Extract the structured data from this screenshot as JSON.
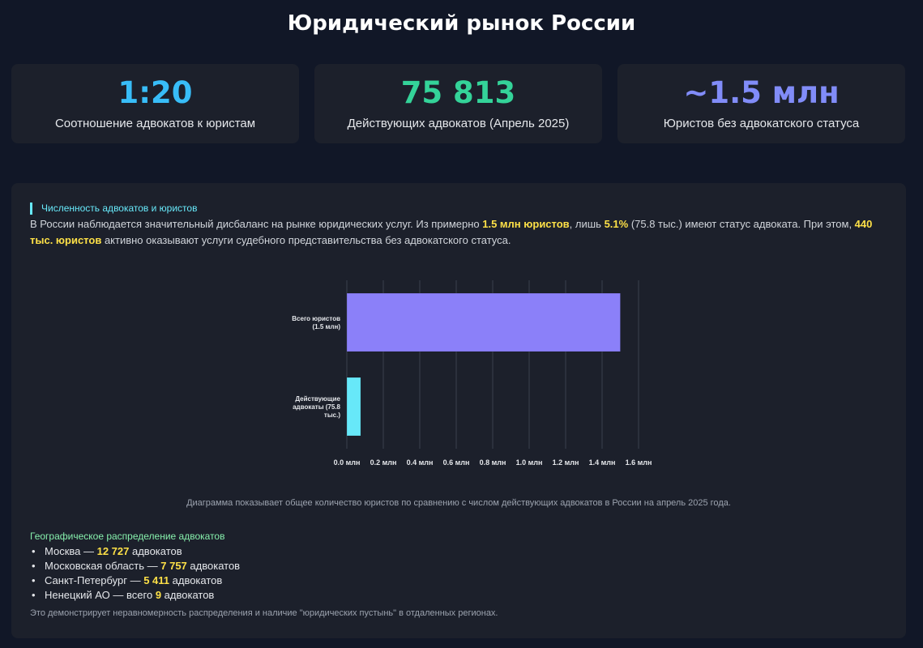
{
  "page": {
    "title": "Юридический рынок России"
  },
  "stats": [
    {
      "value": "1:20",
      "label": "Соотношение адвокатов к юристам",
      "color": "#38bdf8"
    },
    {
      "value": "75 813",
      "label": "Действующих адвокатов (Апрель 2025)",
      "color": "#34d399"
    },
    {
      "value": "~1.5 млн",
      "label": "Юристов без адвокатского статуса",
      "color": "#818cf8"
    }
  ],
  "section": {
    "heading": "Численность адвокатов и юристов",
    "intro": {
      "p1": "В России наблюдается значительный дисбаланс на рынке юридических услуг. Из примерно ",
      "h1": "1.5 млн юристов",
      "p2": ", лишь ",
      "h2": "5.1%",
      "p3": " (75.8 тыс.) имеют статус адвоката. При этом, ",
      "h3": "440 тыс. юристов",
      "p4": " активно оказывают услуги судебного представительства без адвокатского статуса."
    }
  },
  "chart_data": {
    "type": "bar",
    "orientation": "horizontal",
    "categories": [
      [
        "Всего юристов",
        "(1.5 млн)"
      ],
      [
        "Действующие",
        "адвокаты (75.8",
        "тыс.)"
      ]
    ],
    "values": [
      1.5,
      0.0758
    ],
    "colors": [
      "#8b80f9",
      "#67e8f9"
    ],
    "x_ticks": [
      "0.0 млн",
      "0.2 млн",
      "0.4 млн",
      "0.6 млн",
      "0.8 млн",
      "1.0 млн",
      "1.2 млн",
      "1.4 млн",
      "1.6 млн"
    ],
    "xlim": [
      0,
      1.6
    ],
    "grid": true,
    "caption": "Диаграмма показывает общее количество юристов по сравнению с числом действующих адвокатов в России на апрель 2025 года."
  },
  "geography": {
    "heading": "Географическое распределение адвокатов",
    "items": [
      {
        "prefix": "Москва — ",
        "number": "12 727",
        "suffix": " адвокатов"
      },
      {
        "prefix": "Московская область — ",
        "number": "7 757",
        "suffix": " адвокатов"
      },
      {
        "prefix": "Санкт-Петербург — ",
        "number": "5 411",
        "suffix": " адвокатов"
      },
      {
        "prefix": "Ненецкий АО — всего ",
        "number": "9",
        "suffix": " адвокатов"
      }
    ],
    "note": "Это демонстрирует неравномерность распределения и наличие \"юридических пустынь\" в отдаленных регионах."
  }
}
